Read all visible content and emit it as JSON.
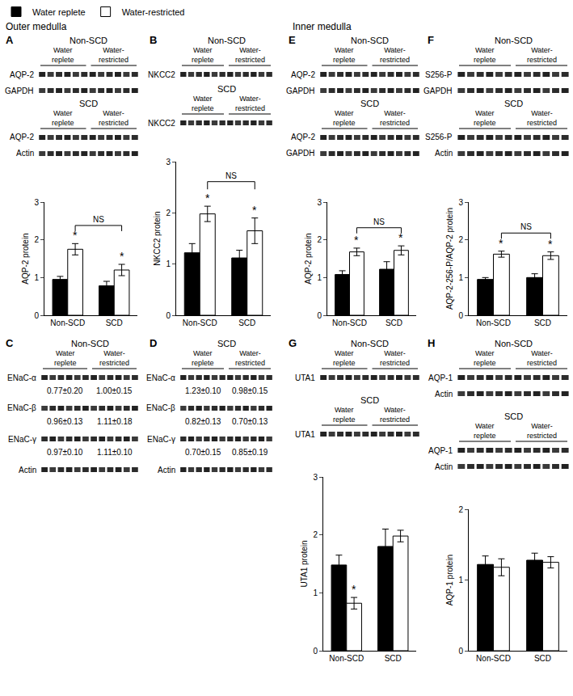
{
  "headers": [
    "Outer medulla",
    "Inner medulla"
  ],
  "panels": [
    {
      "label": "A",
      "blots": [
        {
          "title": "Non-SCD",
          "groups": [
            "Water replete",
            "Water-restricted"
          ],
          "rows": [
            {
              "name": "AQP-2"
            },
            {
              "name": "GAPDH"
            }
          ]
        },
        {
          "title": "SCD",
          "groups": [
            "Water replete",
            "Water-restricted"
          ],
          "rows": [
            {
              "name": "AQP-2"
            },
            {
              "name": "Actin"
            }
          ]
        }
      ]
    },
    {
      "label": "B",
      "blots": [
        {
          "title": "Non-SCD",
          "groups": [
            "Water replete",
            "Water-restricted"
          ],
          "rows": [
            {
              "name": "NKCC2"
            }
          ]
        },
        {
          "title": "SCD",
          "groups": [
            "Water replete",
            "Water-restricted"
          ],
          "rows": [
            {
              "name": "NKCC2"
            }
          ]
        }
      ]
    },
    {
      "label": "C",
      "blots": [
        {
          "title": "Non-SCD",
          "groups": [
            "Water replete",
            "Water-restricted"
          ],
          "rows": [
            {
              "name": "ENaC-α",
              "values": [
                "0.77±0.20",
                "1.00±0.15"
              ]
            },
            {
              "name": "ENaC-β",
              "values": [
                "0.96±0.13",
                "1.11±0.18"
              ]
            },
            {
              "name": "ENaC-γ",
              "values": [
                "0.97±0.10",
                "1.11±0.10"
              ]
            },
            {
              "name": "Actin"
            }
          ]
        }
      ]
    },
    {
      "label": "D",
      "blots": [
        {
          "title": "SCD",
          "groups": [
            "Water replete",
            "Water-restricted"
          ],
          "rows": [
            {
              "name": "ENaC-α",
              "values": [
                "1.23±0.10",
                "0.98±0.15"
              ]
            },
            {
              "name": "ENaC-β",
              "values": [
                "0.82±0.13",
                "0.70±0.13"
              ]
            },
            {
              "name": "ENaC-γ",
              "values": [
                "0.70±0.15",
                "0.85±0.19"
              ]
            },
            {
              "name": "Actin"
            }
          ]
        }
      ]
    },
    {
      "label": "E",
      "blots": [
        {
          "title": "Non-SCD",
          "groups": [
            "Water replete",
            "Water-restricted"
          ],
          "rows": [
            {
              "name": "AQP-2"
            },
            {
              "name": "GAPDH"
            }
          ]
        },
        {
          "title": "SCD",
          "groups": [
            "Water replete",
            "Water-restricted"
          ],
          "rows": [
            {
              "name": "AQP-2"
            },
            {
              "name": "GAPDH"
            }
          ]
        }
      ]
    },
    {
      "label": "F",
      "blots": [
        {
          "title": "Non-SCD",
          "groups": [
            "Water replete",
            "Water-restricted"
          ],
          "rows": [
            {
              "name": "S256-P"
            },
            {
              "name": "GAPDH"
            }
          ]
        },
        {
          "title": "SCD",
          "groups": [
            "Water replete",
            "Water-restricted"
          ],
          "rows": [
            {
              "name": "S256-P"
            },
            {
              "name": "Actin"
            }
          ]
        }
      ]
    },
    {
      "label": "G",
      "blots": [
        {
          "title": "Non-SCD",
          "groups": [
            "Water replete",
            "Water-restricted"
          ],
          "rows": [
            {
              "name": "UTA1"
            }
          ]
        },
        {
          "title": "SCD",
          "groups": [
            "Water replete",
            "Water-restricted"
          ],
          "rows": [
            {
              "name": "UTA1"
            }
          ]
        }
      ]
    },
    {
      "label": "H",
      "blots": [
        {
          "title": "Non-SCD",
          "groups": [
            "Water replete",
            "Water-restricted"
          ],
          "rows": [
            {
              "name": "AQP-1"
            },
            {
              "name": "Actin"
            }
          ]
        },
        {
          "title": "SCD",
          "groups": [
            "Water replete",
            "Water-restricted"
          ],
          "rows": [
            {
              "name": "AQP-1"
            },
            {
              "name": "Actin"
            }
          ]
        }
      ]
    }
  ],
  "chart_data": [
    {
      "panel": "A",
      "type": "bar",
      "y_label": "AQP-2 protein",
      "categories": [
        "Non-SCD",
        "SCD"
      ],
      "series": [
        {
          "name": "Water replete",
          "color": "#000000",
          "values": [
            0.95,
            0.78
          ],
          "errors": [
            0.08,
            0.12
          ]
        },
        {
          "name": "Water-restricted",
          "color": "#ffffff",
          "values": [
            1.75,
            1.2
          ],
          "errors": [
            0.15,
            0.15
          ]
        }
      ],
      "ylim": [
        0,
        3
      ],
      "yticks": [
        0,
        1,
        2,
        3
      ],
      "grid": false,
      "legend": "top left",
      "significance": [
        {
          "category": "Non-SCD",
          "series": "Water-restricted",
          "text": "*"
        },
        {
          "category": "SCD",
          "series": "Water-restricted",
          "text": "*"
        }
      ],
      "comparison": {
        "categories": [
          "Non-SCD",
          "SCD"
        ],
        "series": "Water-restricted",
        "text": "NS"
      }
    },
    {
      "panel": "B",
      "type": "bar",
      "y_label": "NKCC2 protein",
      "categories": [
        "Non-SCD",
        "SCD"
      ],
      "series": [
        {
          "name": "Water replete",
          "color": "#000000",
          "values": [
            1.22,
            1.12
          ],
          "errors": [
            0.18,
            0.15
          ]
        },
        {
          "name": "Water-restricted",
          "color": "#ffffff",
          "values": [
            1.98,
            1.65
          ],
          "errors": [
            0.15,
            0.25
          ]
        }
      ],
      "ylim": [
        0,
        3
      ],
      "yticks": [
        0,
        1,
        2,
        3
      ],
      "grid": false,
      "significance": [
        {
          "category": "Non-SCD",
          "series": "Water-restricted",
          "text": "*"
        },
        {
          "category": "SCD",
          "series": "Water-restricted",
          "text": "*"
        }
      ],
      "comparison": {
        "categories": [
          "Non-SCD",
          "SCD"
        ],
        "series": "Water-restricted",
        "text": "NS"
      }
    },
    {
      "panel": "E",
      "type": "bar",
      "y_label": "AQP-2 protein",
      "categories": [
        "Non-SCD",
        "SCD"
      ],
      "series": [
        {
          "name": "Water replete",
          "color": "#000000",
          "values": [
            1.08,
            1.22
          ],
          "errors": [
            0.1,
            0.2
          ]
        },
        {
          "name": "Water-restricted",
          "color": "#ffffff",
          "values": [
            1.68,
            1.72
          ],
          "errors": [
            0.1,
            0.12
          ]
        }
      ],
      "ylim": [
        0,
        3
      ],
      "yticks": [
        0,
        1,
        2,
        3
      ],
      "grid": false,
      "significance": [
        {
          "category": "Non-SCD",
          "series": "Water-restricted",
          "text": "*"
        },
        {
          "category": "SCD",
          "series": "Water-restricted",
          "text": "*"
        }
      ],
      "comparison": {
        "categories": [
          "Non-SCD",
          "SCD"
        ],
        "series": "Water-restricted",
        "text": "NS"
      }
    },
    {
      "panel": "F",
      "type": "bar",
      "y_label": "AQP-2-256-P/AQP-2 protein",
      "categories": [
        "Non-SCD",
        "SCD"
      ],
      "series": [
        {
          "name": "Water replete",
          "color": "#000000",
          "values": [
            0.95,
            1.0
          ],
          "errors": [
            0.05,
            0.1
          ]
        },
        {
          "name": "Water-restricted",
          "color": "#ffffff",
          "values": [
            1.62,
            1.58
          ],
          "errors": [
            0.08,
            0.1
          ]
        }
      ],
      "ylim": [
        0,
        3
      ],
      "yticks": [
        0,
        1,
        2,
        3
      ],
      "grid": false,
      "significance": [
        {
          "category": "Non-SCD",
          "series": "Water-restricted",
          "text": "*"
        },
        {
          "category": "SCD",
          "series": "Water-restricted",
          "text": "*"
        }
      ],
      "comparison": {
        "categories": [
          "Non-SCD",
          "SCD"
        ],
        "series": "Water-restricted",
        "text": "NS"
      }
    },
    {
      "panel": "G",
      "type": "bar",
      "y_label": "UTA1 protein",
      "categories": [
        "Non-SCD",
        "SCD"
      ],
      "series": [
        {
          "name": "Water replete",
          "color": "#000000",
          "values": [
            1.48,
            1.8
          ],
          "errors": [
            0.17,
            0.3
          ]
        },
        {
          "name": "Water-restricted",
          "color": "#ffffff",
          "values": [
            0.82,
            1.98
          ],
          "errors": [
            0.1,
            0.1
          ]
        }
      ],
      "ylim": [
        0,
        3
      ],
      "yticks": [
        0,
        1,
        2,
        3
      ],
      "grid": false,
      "significance": [
        {
          "category": "Non-SCD",
          "series": "Water-restricted",
          "text": "*"
        }
      ]
    },
    {
      "panel": "H",
      "type": "bar",
      "y_label": "AQP-1 protein",
      "categories": [
        "Non-SCD",
        "SCD"
      ],
      "series": [
        {
          "name": "Water replete",
          "color": "#000000",
          "values": [
            1.22,
            1.28
          ],
          "errors": [
            0.12,
            0.1
          ]
        },
        {
          "name": "Water-restricted",
          "color": "#ffffff",
          "values": [
            1.18,
            1.25
          ],
          "errors": [
            0.12,
            0.08
          ]
        }
      ],
      "ylim": [
        0,
        2
      ],
      "yticks": [
        0,
        1,
        2
      ],
      "grid": false
    }
  ]
}
